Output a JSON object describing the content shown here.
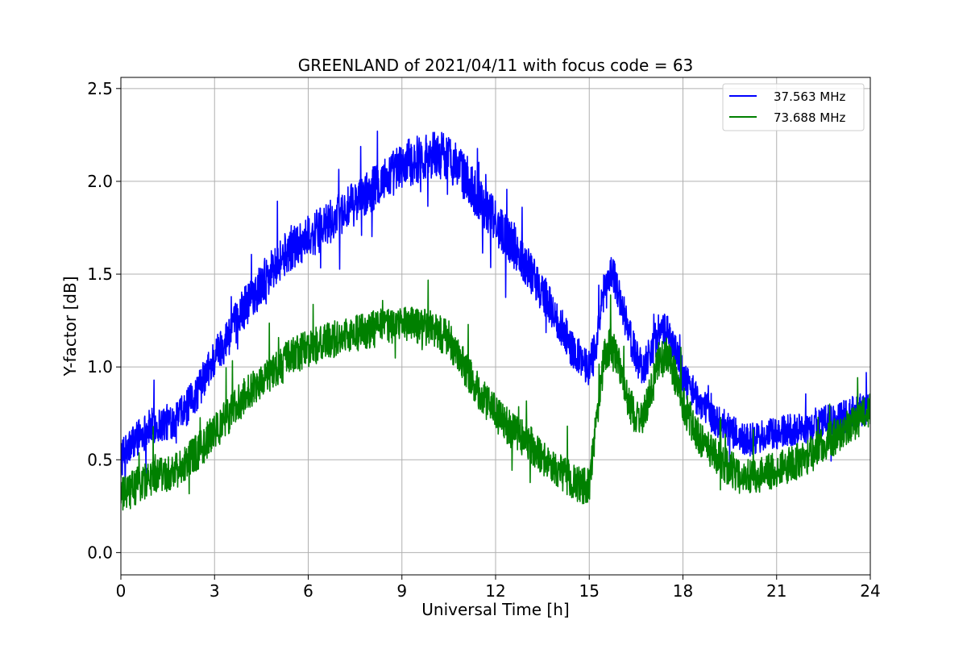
{
  "chart_data": {
    "type": "line",
    "title": "GREENLAND of 2021/04/11 with focus code = 63",
    "xlabel": "Universal Time [h]",
    "ylabel": "Y-factor [dB]",
    "xlim": [
      0,
      24
    ],
    "ylim": [
      -0.12,
      2.56
    ],
    "xticks": [
      0,
      3,
      6,
      9,
      12,
      15,
      18,
      21,
      24
    ],
    "xtick_labels": [
      "0",
      "3",
      "6",
      "9",
      "12",
      "15",
      "18",
      "21",
      "24"
    ],
    "yticks": [
      0.0,
      0.5,
      1.0,
      1.5,
      2.0,
      2.5
    ],
    "ytick_labels": [
      "0.0",
      "0.5",
      "1.0",
      "1.5",
      "2.0",
      "2.5"
    ],
    "grid": true,
    "legend_position": "top-right",
    "series": [
      {
        "name": "37.563 MHz",
        "color": "#0000ff",
        "x": [
          0,
          0.5,
          1,
          1.5,
          2,
          2.5,
          3,
          3.5,
          4,
          4.5,
          5,
          5.5,
          6,
          6.5,
          7,
          7.5,
          8,
          8.5,
          9,
          9.5,
          10,
          10.5,
          11,
          11.5,
          12,
          12.5,
          13,
          13.5,
          14,
          14.5,
          15,
          15.25,
          15.5,
          15.75,
          16,
          16.25,
          16.5,
          16.75,
          17,
          17.25,
          17.5,
          17.75,
          18,
          18.5,
          19,
          19.5,
          20,
          20.5,
          21,
          21.5,
          22,
          22.5,
          23,
          23.5,
          24
        ],
        "y": [
          0.5,
          0.62,
          0.68,
          0.7,
          0.75,
          0.88,
          1.05,
          1.18,
          1.33,
          1.45,
          1.56,
          1.65,
          1.7,
          1.75,
          1.82,
          1.88,
          1.95,
          2.02,
          2.08,
          2.12,
          2.15,
          2.13,
          2.03,
          1.9,
          1.78,
          1.67,
          1.55,
          1.4,
          1.25,
          1.08,
          1.0,
          1.15,
          1.45,
          1.52,
          1.35,
          1.2,
          1.05,
          1.0,
          1.1,
          1.2,
          1.18,
          1.1,
          0.95,
          0.82,
          0.72,
          0.66,
          0.6,
          0.62,
          0.64,
          0.66,
          0.68,
          0.7,
          0.72,
          0.76,
          0.78
        ],
        "noise_amplitude": [
          0.1,
          0.1,
          0.1,
          0.1,
          0.1,
          0.1,
          0.11,
          0.11,
          0.12,
          0.12,
          0.12,
          0.12,
          0.12,
          0.12,
          0.12,
          0.12,
          0.12,
          0.12,
          0.13,
          0.13,
          0.13,
          0.13,
          0.13,
          0.13,
          0.12,
          0.12,
          0.12,
          0.11,
          0.11,
          0.1,
          0.1,
          0.1,
          0.1,
          0.1,
          0.1,
          0.1,
          0.1,
          0.1,
          0.1,
          0.1,
          0.1,
          0.1,
          0.1,
          0.09,
          0.09,
          0.09,
          0.09,
          0.09,
          0.09,
          0.09,
          0.09,
          0.09,
          0.09,
          0.09,
          0.09
        ]
      },
      {
        "name": "73.688 MHz",
        "color": "#008000",
        "x": [
          0,
          0.5,
          1,
          1.5,
          2,
          2.5,
          3,
          3.5,
          4,
          4.5,
          5,
          5.5,
          6,
          6.5,
          7,
          7.5,
          8,
          8.5,
          9,
          9.5,
          10,
          10.5,
          11,
          11.5,
          12,
          12.5,
          13,
          13.5,
          14,
          14.5,
          15,
          15.25,
          15.5,
          15.75,
          16,
          16.25,
          16.5,
          16.75,
          17,
          17.25,
          17.5,
          17.75,
          18,
          18.5,
          19,
          19.5,
          20,
          20.5,
          21,
          21.5,
          22,
          22.5,
          23,
          23.5,
          24
        ],
        "y": [
          0.3,
          0.36,
          0.4,
          0.43,
          0.48,
          0.55,
          0.65,
          0.75,
          0.85,
          0.93,
          1.0,
          1.06,
          1.1,
          1.13,
          1.16,
          1.18,
          1.2,
          1.22,
          1.23,
          1.22,
          1.2,
          1.15,
          1.0,
          0.85,
          0.75,
          0.66,
          0.6,
          0.52,
          0.45,
          0.38,
          0.35,
          0.75,
          1.08,
          1.12,
          0.98,
          0.82,
          0.72,
          0.75,
          0.88,
          1.05,
          1.08,
          0.95,
          0.8,
          0.62,
          0.52,
          0.45,
          0.4,
          0.42,
          0.45,
          0.48,
          0.52,
          0.58,
          0.64,
          0.7,
          0.76
        ],
        "noise_amplitude": [
          0.1,
          0.1,
          0.1,
          0.1,
          0.1,
          0.1,
          0.1,
          0.1,
          0.1,
          0.1,
          0.1,
          0.1,
          0.1,
          0.1,
          0.1,
          0.1,
          0.1,
          0.1,
          0.1,
          0.1,
          0.1,
          0.1,
          0.1,
          0.1,
          0.1,
          0.1,
          0.1,
          0.1,
          0.1,
          0.1,
          0.1,
          0.1,
          0.1,
          0.1,
          0.1,
          0.1,
          0.1,
          0.1,
          0.1,
          0.1,
          0.1,
          0.1,
          0.1,
          0.1,
          0.1,
          0.1,
          0.1,
          0.1,
          0.1,
          0.1,
          0.1,
          0.1,
          0.1,
          0.1,
          0.1
        ]
      }
    ]
  }
}
